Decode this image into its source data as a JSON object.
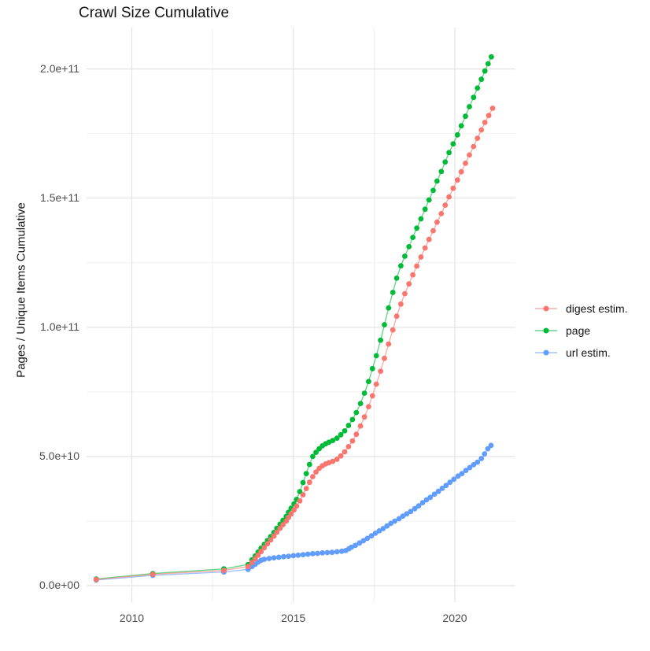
{
  "title": "Crawl Size Cumulative",
  "chart_data": {
    "type": "scatter",
    "title": "Crawl Size Cumulative",
    "xlabel": "",
    "ylabel": "Pages / Unique Items Cumulative",
    "grid": true,
    "legend_position": "right",
    "xlim": [
      2008.5,
      2021.9
    ],
    "ylim_e9": [
      -4,
      216
    ],
    "x_ticks": [
      {
        "value": 2010,
        "label": "2010"
      },
      {
        "value": 2015,
        "label": "2015"
      },
      {
        "value": 2020,
        "label": "2020"
      }
    ],
    "x_minor_ticks": [
      2012.5,
      2017.5
    ],
    "y_ticks": [
      {
        "value_e9": 0,
        "label": "0.0e+00"
      },
      {
        "value_e9": 50,
        "label": "5.0e+10"
      },
      {
        "value_e9": 100,
        "label": "1.0e+11"
      },
      {
        "value_e9": 150,
        "label": "1.5e+11"
      },
      {
        "value_e9": 200,
        "label": "2.0e+11"
      }
    ],
    "y_minor_ticks_e9": [
      25,
      75,
      125,
      175
    ],
    "value_unit_multiplier": 1000000000.0,
    "series": [
      {
        "name": "url estim.",
        "color": "#619CFF",
        "points": [
          [
            2008.9,
            2.2
          ],
          [
            2010.65,
            4.0
          ],
          [
            2012.85,
            5.3
          ],
          [
            2013.6,
            6.3
          ],
          [
            2013.72,
            7.4
          ],
          [
            2013.82,
            8.3
          ],
          [
            2013.91,
            9.1
          ],
          [
            2014.0,
            9.8
          ],
          [
            2014.1,
            10.2
          ],
          [
            2014.25,
            10.5
          ],
          [
            2014.4,
            10.8
          ],
          [
            2014.55,
            11.0
          ],
          [
            2014.7,
            11.2
          ],
          [
            2014.85,
            11.4
          ],
          [
            2015.0,
            11.6
          ],
          [
            2015.15,
            11.8
          ],
          [
            2015.3,
            12.0
          ],
          [
            2015.45,
            12.2
          ],
          [
            2015.6,
            12.4
          ],
          [
            2015.75,
            12.5
          ],
          [
            2015.9,
            12.7
          ],
          [
            2016.05,
            12.8
          ],
          [
            2016.2,
            12.9
          ],
          [
            2016.35,
            13.1
          ],
          [
            2016.5,
            13.3
          ],
          [
            2016.62,
            13.6
          ],
          [
            2016.72,
            14.3
          ],
          [
            2016.8,
            14.9
          ],
          [
            2016.92,
            15.6
          ],
          [
            2017.05,
            16.5
          ],
          [
            2017.17,
            17.4
          ],
          [
            2017.29,
            18.3
          ],
          [
            2017.42,
            19.3
          ],
          [
            2017.54,
            20.3
          ],
          [
            2017.66,
            21.2
          ],
          [
            2017.78,
            22.1
          ],
          [
            2017.9,
            23.1
          ],
          [
            2018.02,
            24.1
          ],
          [
            2018.14,
            25.0
          ],
          [
            2018.27,
            25.9
          ],
          [
            2018.39,
            26.9
          ],
          [
            2018.51,
            27.8
          ],
          [
            2018.63,
            28.7
          ],
          [
            2018.76,
            29.8
          ],
          [
            2018.88,
            30.9
          ],
          [
            2019.0,
            32.1
          ],
          [
            2019.12,
            33.2
          ],
          [
            2019.24,
            34.2
          ],
          [
            2019.37,
            35.4
          ],
          [
            2019.49,
            36.5
          ],
          [
            2019.61,
            37.7
          ],
          [
            2019.73,
            38.8
          ],
          [
            2019.85,
            40.0
          ],
          [
            2019.97,
            41.2
          ],
          [
            2020.1,
            42.4
          ],
          [
            2020.22,
            43.4
          ],
          [
            2020.34,
            44.6
          ],
          [
            2020.46,
            45.7
          ],
          [
            2020.58,
            46.8
          ],
          [
            2020.7,
            47.8
          ],
          [
            2020.82,
            49.2
          ],
          [
            2020.92,
            51.0
          ],
          [
            2021.02,
            53.0
          ],
          [
            2021.12,
            54.3
          ]
        ]
      },
      {
        "name": "page",
        "color": "#00BA38",
        "points": [
          [
            2008.9,
            2.6
          ],
          [
            2010.65,
            4.7
          ],
          [
            2012.85,
            6.5
          ],
          [
            2013.6,
            8.2
          ],
          [
            2013.72,
            10.0
          ],
          [
            2013.82,
            11.5
          ],
          [
            2013.91,
            13.0
          ],
          [
            2014.0,
            14.5
          ],
          [
            2014.1,
            16.0
          ],
          [
            2014.2,
            17.5
          ],
          [
            2014.3,
            19.0
          ],
          [
            2014.4,
            20.6
          ],
          [
            2014.49,
            22.2
          ],
          [
            2014.59,
            23.8
          ],
          [
            2014.68,
            25.3
          ],
          [
            2014.78,
            26.8
          ],
          [
            2014.85,
            28.4
          ],
          [
            2014.93,
            30.0
          ],
          [
            2015.02,
            31.7
          ],
          [
            2015.1,
            33.4
          ],
          [
            2015.2,
            36.4
          ],
          [
            2015.3,
            39.9
          ],
          [
            2015.4,
            43.4
          ],
          [
            2015.5,
            46.9
          ],
          [
            2015.6,
            50.0
          ],
          [
            2015.7,
            51.6
          ],
          [
            2015.8,
            53.0
          ],
          [
            2015.9,
            54.1
          ],
          [
            2016.0,
            54.9
          ],
          [
            2016.1,
            55.5
          ],
          [
            2016.22,
            56.2
          ],
          [
            2016.35,
            57.1
          ],
          [
            2016.47,
            58.4
          ],
          [
            2016.59,
            59.9
          ],
          [
            2016.71,
            62.0
          ],
          [
            2016.83,
            64.3
          ],
          [
            2016.95,
            67.0
          ],
          [
            2017.08,
            70.5
          ],
          [
            2017.2,
            74.5
          ],
          [
            2017.33,
            79.0
          ],
          [
            2017.45,
            84.0
          ],
          [
            2017.57,
            89.0
          ],
          [
            2017.7,
            95.0
          ],
          [
            2017.82,
            101.0
          ],
          [
            2017.95,
            107.5
          ],
          [
            2018.08,
            113.5
          ],
          [
            2018.2,
            119.0
          ],
          [
            2018.33,
            123.8
          ],
          [
            2018.45,
            127.5
          ],
          [
            2018.58,
            131.2
          ],
          [
            2018.7,
            134.8
          ],
          [
            2018.82,
            138.4
          ],
          [
            2018.95,
            142.0
          ],
          [
            2019.08,
            145.7
          ],
          [
            2019.2,
            149.3
          ],
          [
            2019.33,
            153.0
          ],
          [
            2019.45,
            156.6
          ],
          [
            2019.58,
            160.3
          ],
          [
            2019.7,
            164.0
          ],
          [
            2019.82,
            167.6
          ],
          [
            2019.95,
            171.0
          ],
          [
            2020.08,
            174.5
          ],
          [
            2020.2,
            178.0
          ],
          [
            2020.33,
            181.7
          ],
          [
            2020.45,
            185.4
          ],
          [
            2020.58,
            189.0
          ],
          [
            2020.7,
            192.6
          ],
          [
            2020.82,
            196.0
          ],
          [
            2020.93,
            199.2
          ],
          [
            2021.03,
            202.0
          ],
          [
            2021.13,
            204.7
          ]
        ]
      },
      {
        "name": "digest estim.",
        "color": "#F8766D",
        "points": [
          [
            2008.9,
            2.4
          ],
          [
            2010.65,
            4.4
          ],
          [
            2012.85,
            5.9
          ],
          [
            2013.6,
            7.4
          ],
          [
            2013.72,
            9.0
          ],
          [
            2013.82,
            10.4
          ],
          [
            2013.91,
            11.8
          ],
          [
            2014.0,
            13.2
          ],
          [
            2014.1,
            14.7
          ],
          [
            2014.2,
            16.2
          ],
          [
            2014.3,
            17.7
          ],
          [
            2014.4,
            19.2
          ],
          [
            2014.49,
            20.7
          ],
          [
            2014.59,
            22.2
          ],
          [
            2014.68,
            23.6
          ],
          [
            2014.78,
            25.0
          ],
          [
            2014.85,
            26.4
          ],
          [
            2014.93,
            27.8
          ],
          [
            2015.02,
            29.3
          ],
          [
            2015.1,
            30.8
          ],
          [
            2015.2,
            32.8
          ],
          [
            2015.3,
            35.2
          ],
          [
            2015.4,
            37.6
          ],
          [
            2015.5,
            40.0
          ],
          [
            2015.6,
            42.2
          ],
          [
            2015.7,
            44.0
          ],
          [
            2015.8,
            45.4
          ],
          [
            2015.9,
            46.4
          ],
          [
            2016.0,
            47.1
          ],
          [
            2016.1,
            47.6
          ],
          [
            2016.22,
            48.1
          ],
          [
            2016.35,
            48.9
          ],
          [
            2016.47,
            50.2
          ],
          [
            2016.59,
            51.8
          ],
          [
            2016.71,
            53.8
          ],
          [
            2016.83,
            56.0
          ],
          [
            2016.95,
            58.6
          ],
          [
            2017.08,
            61.8
          ],
          [
            2017.2,
            65.3
          ],
          [
            2017.33,
            69.3
          ],
          [
            2017.45,
            73.5
          ],
          [
            2017.57,
            78.0
          ],
          [
            2017.7,
            83.0
          ],
          [
            2017.82,
            88.0
          ],
          [
            2017.95,
            93.5
          ],
          [
            2018.08,
            99.0
          ],
          [
            2018.2,
            104.3
          ],
          [
            2018.33,
            109.0
          ],
          [
            2018.45,
            113.0
          ],
          [
            2018.58,
            116.8
          ],
          [
            2018.7,
            120.3
          ],
          [
            2018.82,
            123.7
          ],
          [
            2018.95,
            127.2
          ],
          [
            2019.08,
            130.7
          ],
          [
            2019.2,
            134.0
          ],
          [
            2019.33,
            137.4
          ],
          [
            2019.45,
            140.7
          ],
          [
            2019.58,
            144.0
          ],
          [
            2019.7,
            147.3
          ],
          [
            2019.82,
            150.5
          ],
          [
            2019.95,
            153.8
          ],
          [
            2020.08,
            157.0
          ],
          [
            2020.2,
            160.2
          ],
          [
            2020.33,
            163.5
          ],
          [
            2020.45,
            166.7
          ],
          [
            2020.58,
            170.0
          ],
          [
            2020.7,
            173.2
          ],
          [
            2020.82,
            176.4
          ],
          [
            2020.93,
            179.3
          ],
          [
            2021.05,
            182.0
          ],
          [
            2021.17,
            184.8
          ]
        ]
      }
    ]
  },
  "legend": {
    "items": [
      {
        "label": "digest estim.",
        "color": "#F8766D"
      },
      {
        "label": "page",
        "color": "#00BA38"
      },
      {
        "label": "url estim.",
        "color": "#619CFF"
      }
    ]
  },
  "colors": {
    "background": "#ffffff",
    "grid_major": "#e3e3e3",
    "grid_minor": "#f0f0f0",
    "tick_label": "#4d4d4d",
    "text": "#141414"
  }
}
